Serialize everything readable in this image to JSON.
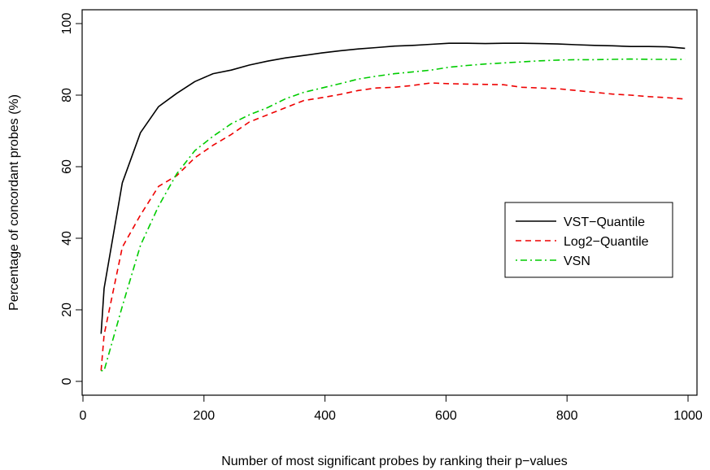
{
  "chart_data": {
    "type": "line",
    "title": "",
    "xlabel": "Number of most significant probes by ranking their p−values",
    "ylabel": "Percentage of concordant probes (%)",
    "xlim": [
      0,
      1000
    ],
    "ylim": [
      0,
      100
    ],
    "x_ticks": [
      "0",
      "200",
      "400",
      "600",
      "800",
      "1000"
    ],
    "y_ticks": [
      "0",
      "20",
      "40",
      "60",
      "80",
      "100"
    ],
    "x_tick_values": [
      0,
      200,
      400,
      600,
      800,
      1000
    ],
    "y_tick_values": [
      0,
      20,
      40,
      60,
      80,
      100
    ],
    "grid": false,
    "legend_position": "right",
    "series": [
      {
        "name": "VST−Quantile",
        "color": "#000000",
        "dash": "solid",
        "x": [
          30,
          35,
          65,
          95,
          125,
          155,
          185,
          215,
          245,
          275,
          305,
          335,
          365,
          395,
          425,
          455,
          485,
          515,
          545,
          575,
          605,
          635,
          665,
          695,
          725,
          755,
          785,
          815,
          845,
          875,
          905,
          935,
          965,
          995
        ],
        "y": [
          13.3,
          26,
          55.5,
          69.5,
          76.8,
          80.5,
          83.8,
          86,
          87,
          88.4,
          89.5,
          90.4,
          91.1,
          91.8,
          92.4,
          92.9,
          93.3,
          93.7,
          93.9,
          94.2,
          94.5,
          94.5,
          94.4,
          94.5,
          94.5,
          94.4,
          94.3,
          94.1,
          93.9,
          93.8,
          93.6,
          93.6,
          93.5,
          93.1
        ]
      },
      {
        "name": "Log2−Quantile",
        "color": "#ee0000",
        "dash": "dashed",
        "x": [
          30,
          35,
          65,
          95,
          125,
          155,
          185,
          215,
          245,
          275,
          305,
          335,
          365,
          395,
          425,
          455,
          485,
          515,
          545,
          575,
          605,
          635,
          665,
          695,
          725,
          755,
          785,
          815,
          845,
          875,
          905,
          935,
          965,
          995
        ],
        "y": [
          3,
          13,
          37.5,
          46.5,
          54.5,
          57.5,
          62.5,
          66,
          69,
          72.5,
          74.5,
          76.5,
          78.5,
          79.3,
          80.2,
          81.3,
          82,
          82.2,
          82.7,
          83.4,
          83.2,
          83.1,
          83,
          82.9,
          82.2,
          82,
          81.8,
          81.3,
          80.8,
          80.3,
          80,
          79.6,
          79.3,
          78.9
        ]
      },
      {
        "name": "VSN",
        "color": "#00cc00",
        "dash": "dotdash",
        "x": [
          30,
          35,
          65,
          95,
          125,
          155,
          185,
          215,
          245,
          275,
          305,
          335,
          365,
          395,
          425,
          455,
          485,
          515,
          545,
          575,
          605,
          635,
          665,
          695,
          725,
          755,
          785,
          815,
          845,
          875,
          905,
          935,
          965,
          995
        ],
        "y": [
          3,
          3,
          21,
          38,
          49,
          58,
          64.5,
          68.5,
          72,
          74.5,
          76.5,
          79,
          80.8,
          82,
          83.2,
          84.5,
          85.3,
          86,
          86.5,
          87,
          87.8,
          88.3,
          88.7,
          89,
          89.3,
          89.6,
          89.8,
          89.9,
          89.9,
          90,
          90.1,
          90,
          90,
          90
        ]
      }
    ]
  }
}
